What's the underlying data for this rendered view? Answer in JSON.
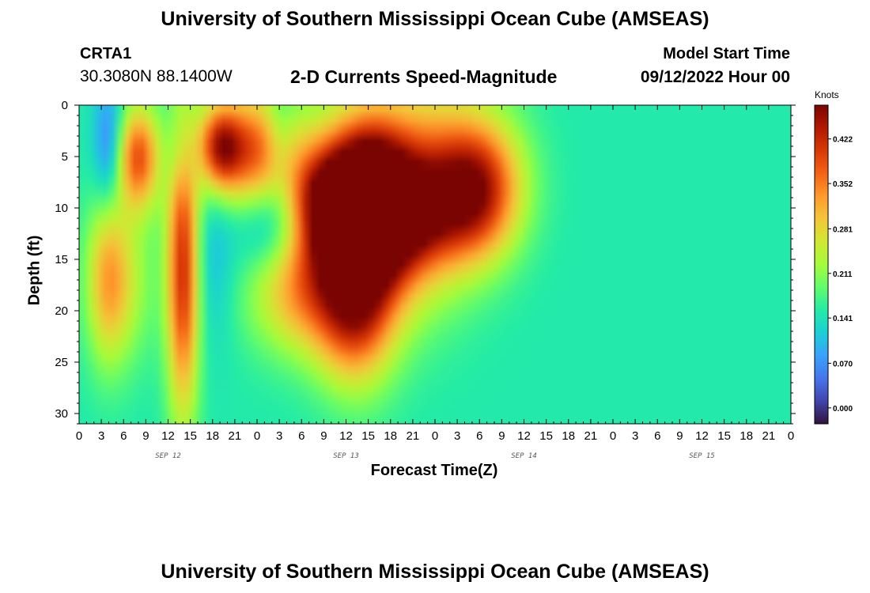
{
  "header": {
    "title": "University of Southern Mississippi Ocean Cube (AMSEAS)",
    "station": "CRTA1",
    "coords": "30.3080N  88.1400W",
    "plot_title": "2-D Currents Speed-Magnitude",
    "model_label": "Model Start Time",
    "model_time": "09/12/2022 Hour 00"
  },
  "footer": {
    "title": "University of Southern Mississippi Ocean Cube (AMSEAS)"
  },
  "chart_data": {
    "type": "heatmap",
    "title": "2-D Currents Speed-Magnitude",
    "xlabel": "Forecast Time(Z)",
    "ylabel": "Depth (ft)",
    "units": "Knots",
    "x_range_hours": [
      0,
      96
    ],
    "ylim": [
      0,
      31
    ],
    "y_inverted": true,
    "x_ticks": [
      "0",
      "3",
      "6",
      "9",
      "12",
      "15",
      "18",
      "21",
      "0",
      "3",
      "6",
      "9",
      "12",
      "15",
      "18",
      "21",
      "0",
      "3",
      "6",
      "9",
      "12",
      "15",
      "18",
      "21",
      "0",
      "3",
      "6",
      "9",
      "12",
      "15",
      "18",
      "21",
      "0"
    ],
    "y_ticks": [
      "0",
      "5",
      "10",
      "15",
      "20",
      "25",
      "30"
    ],
    "date_labels": [
      {
        "hour": 12,
        "label": "SEP 12"
      },
      {
        "hour": 36,
        "label": "SEP 13"
      },
      {
        "hour": 60,
        "label": "SEP 14"
      },
      {
        "hour": 84,
        "label": "SEP 15"
      }
    ],
    "colorbar": {
      "ticks": [
        "0.000",
        "0.070",
        "0.141",
        "0.211",
        "0.281",
        "0.352",
        "0.422"
      ],
      "range": [
        -0.025,
        0.475
      ],
      "colors": [
        "#30123b",
        "#4145ab",
        "#4675ed",
        "#39a2fc",
        "#1bcfd4",
        "#24eca6",
        "#61fc6c",
        "#a4fc3b",
        "#d1e834",
        "#f3c63a",
        "#fe9b2d",
        "#f36315",
        "#d93806",
        "#b11901",
        "#7a0402"
      ]
    },
    "blobs": [
      [
        23,
        5,
        6,
        6,
        0.32
      ],
      [
        26,
        11,
        5,
        5,
        0.02
      ],
      [
        33,
        9,
        6,
        6,
        0.28
      ],
      [
        30,
        18,
        7,
        6,
        0.3
      ],
      [
        38,
        9,
        6,
        6,
        0.42
      ],
      [
        38,
        17,
        5,
        9,
        0.34
      ],
      [
        40,
        10,
        10,
        10,
        0.4
      ],
      [
        37,
        2,
        6,
        3,
        0.18
      ],
      [
        35,
        5,
        5,
        5,
        0.05
      ],
      [
        43,
        8,
        5,
        5,
        0.1
      ],
      [
        45,
        10,
        8,
        8,
        0.2
      ],
      [
        50,
        2,
        8,
        6,
        0.2
      ],
      [
        54,
        7,
        6,
        6,
        0.3
      ],
      [
        4,
        4,
        2,
        6,
        0.04
      ],
      [
        4,
        17,
        3,
        8,
        0.33
      ],
      [
        8,
        5,
        3,
        5,
        0.38
      ],
      [
        8,
        17,
        3,
        8,
        0.2
      ],
      [
        14,
        5,
        3,
        4,
        0.1
      ],
      [
        14,
        16,
        2.2,
        14,
        0.42
      ],
      [
        19,
        4,
        3,
        4,
        0.38
      ],
      [
        18,
        14,
        3,
        9,
        0.1
      ],
      [
        24,
        4,
        3,
        6,
        0.2
      ],
      [
        27,
        3,
        2,
        5,
        0.1
      ],
      [
        35,
        8,
        6,
        5,
        0.22
      ],
      [
        36,
        22,
        5,
        6,
        0.22
      ],
      [
        44,
        10,
        6,
        5,
        0.3
      ],
      [
        53,
        10,
        6,
        6,
        0.3
      ]
    ]
  }
}
